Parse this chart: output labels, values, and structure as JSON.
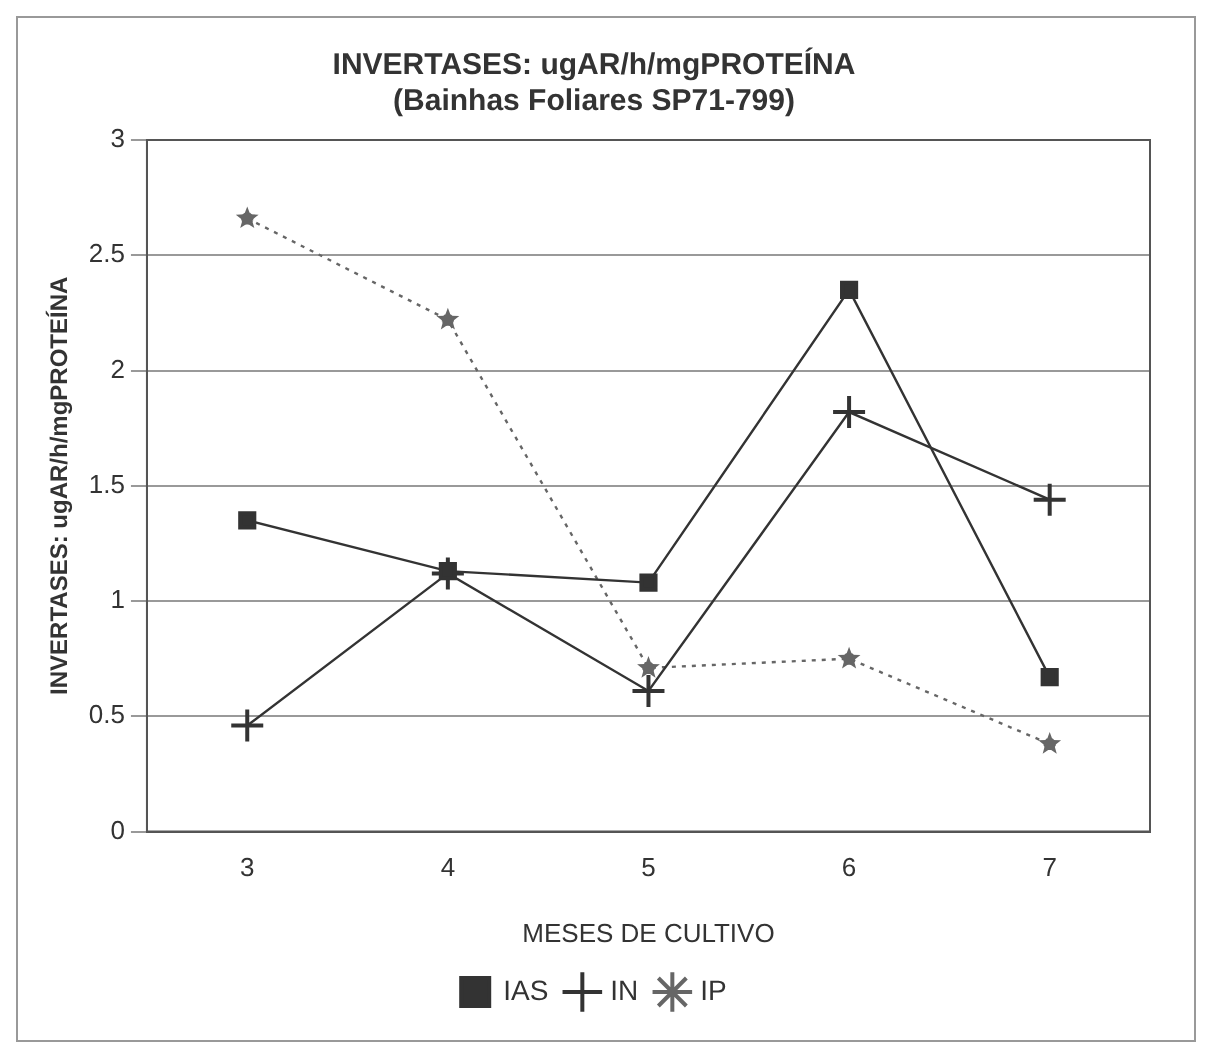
{
  "chart_data": {
    "type": "line",
    "title": [
      "INVERTASES: ugAR/h/mgPROTEÍNA",
      "(Bainhas Foliares SP71-799)"
    ],
    "xlabel": "MESES DE CULTIVO",
    "ylabel": "INVERTASES: ugAR/h/mgPROTEÍNA",
    "categories": [
      "3",
      "4",
      "5",
      "6",
      "7"
    ],
    "series": [
      {
        "name": "IAS",
        "color": "#333333",
        "marker": "square",
        "line_style": "solid",
        "values": [
          1.35,
          1.13,
          1.08,
          2.35,
          0.67
        ]
      },
      {
        "name": "IN",
        "color": "#333333",
        "marker": "cross",
        "line_style": "solid",
        "values": [
          0.46,
          1.12,
          0.61,
          1.82,
          1.44
        ]
      },
      {
        "name": "IP",
        "color": "#666666",
        "marker": "star",
        "line_style": "dotted",
        "values": [
          2.66,
          2.22,
          0.71,
          0.75,
          0.38
        ]
      }
    ],
    "ylim": [
      0,
      3
    ],
    "yticks": [
      0,
      0.5,
      1,
      1.5,
      2,
      2.5,
      3
    ],
    "grid": "y",
    "legend": "bottom"
  }
}
